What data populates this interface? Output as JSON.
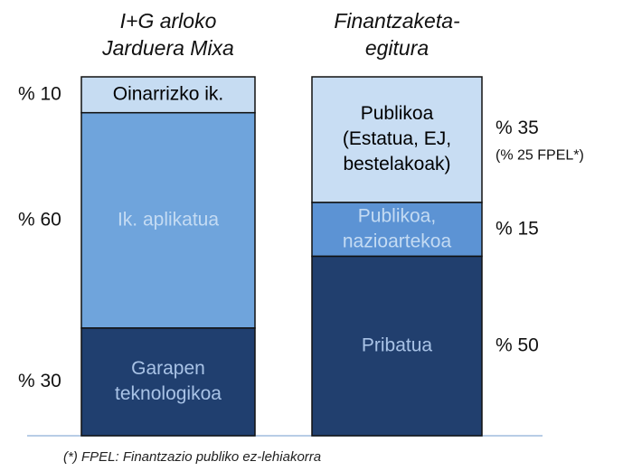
{
  "chart_data": [
    {
      "type": "stacked_bar",
      "title": [
        "I+G arloko",
        "Jarduera Mixa"
      ],
      "series": [
        {
          "name": [
            "Oinarrizko ik."
          ],
          "color": "#c6dcf2",
          "text_color": "#000000",
          "values": [
            10
          ],
          "value_labels": [
            "% 10"
          ]
        },
        {
          "name": [
            "Ik. aplikatua"
          ],
          "color": "#6fa4dc",
          "text_color": "#c4dbf3",
          "values": [
            60
          ],
          "value_labels": [
            "% 60"
          ]
        },
        {
          "name": [
            "Garapen",
            "teknologikoa"
          ],
          "color": "#203f6f",
          "text_color": "#a9c3e6",
          "values": [
            30
          ],
          "value_labels": [
            "% 30"
          ]
        }
      ],
      "ylim": [
        0,
        100
      ]
    },
    {
      "type": "stacked_bar",
      "title": [
        "Finantzaketa-",
        "egitura"
      ],
      "series": [
        {
          "name": [
            "Publikoa",
            "(Estatua, EJ,",
            "bestelakoak)"
          ],
          "color": "#c8ddf3",
          "text_color": "#000000",
          "values": [
            35
          ],
          "value_labels": [
            "% 35"
          ],
          "annotation": "(% 25 FPEL*)"
        },
        {
          "name": [
            "Publikoa,",
            "nazioartekoa"
          ],
          "color": "#5c93d4",
          "text_color": "#c4dbf3",
          "values": [
            15
          ],
          "value_labels": [
            "% 15"
          ]
        },
        {
          "name": [
            "Pribatua"
          ],
          "color": "#213f6e",
          "text_color": "#a9c3e6",
          "values": [
            50
          ],
          "value_labels": [
            "% 50"
          ]
        }
      ],
      "ylim": [
        0,
        100
      ]
    }
  ],
  "footnote": "(*) FPEL: Finantzazio publiko ez-lehiakorra"
}
